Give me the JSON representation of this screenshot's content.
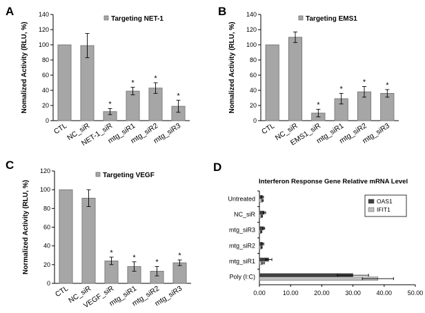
{
  "chart_data": [
    {
      "panel": "A",
      "type": "bar",
      "legend": "Targeting NET-1",
      "ylabel": "Nomalized Activity (RLU, %)",
      "ylim": [
        0,
        140
      ],
      "yticks": [
        0,
        20,
        40,
        60,
        80,
        100,
        120,
        140
      ],
      "categories": [
        "CTL",
        "NC_siR",
        "NET-1_siR",
        "mtg_siR1",
        "mtg_siR2",
        "mtg_siR3"
      ],
      "values": [
        100,
        99,
        12,
        39,
        43,
        19
      ],
      "errors": [
        0,
        16,
        4,
        5,
        7,
        8
      ],
      "significant": [
        false,
        false,
        true,
        true,
        true,
        true
      ],
      "star_symbol": "*"
    },
    {
      "panel": "B",
      "type": "bar",
      "legend": "Targeting EMS1",
      "ylabel": "Nomalized Activity (RLU, %)",
      "ylim": [
        0,
        140
      ],
      "yticks": [
        0,
        20,
        40,
        60,
        80,
        100,
        120,
        140
      ],
      "categories": [
        "CTL",
        "NC_siR",
        "EMS1_siR",
        "mtg_siR1",
        "mtg_siR2",
        "mtg_siR3"
      ],
      "values": [
        100,
        110,
        10,
        29,
        38,
        36
      ],
      "errors": [
        0,
        7,
        5,
        7,
        7,
        5
      ],
      "significant": [
        false,
        false,
        true,
        true,
        true,
        true
      ],
      "star_symbol": "*"
    },
    {
      "panel": "C",
      "type": "bar",
      "legend": "Targeting VEGF",
      "ylabel": "Normalized Activity (RLU, %)",
      "ylim": [
        0,
        120
      ],
      "yticks": [
        0,
        20,
        40,
        60,
        80,
        100,
        120
      ],
      "categories": [
        "CTL",
        "NC_siR",
        "VEGF_siR",
        "mtg_siR1",
        "mtg_siR2",
        "mtg_siR3"
      ],
      "values": [
        100,
        91,
        24,
        18,
        13,
        22
      ],
      "errors": [
        0,
        9,
        4,
        5,
        5,
        3
      ],
      "significant": [
        false,
        false,
        true,
        true,
        true,
        true
      ],
      "star_symbol": "*"
    },
    {
      "panel": "D",
      "type": "bar",
      "orientation": "horizontal",
      "title": "Interferon Response Gene Relative mRNA Level",
      "xlim": [
        0,
        50
      ],
      "xticks": [
        "0.00",
        "10.00",
        "20.00",
        "30.00",
        "40.00",
        "50.00"
      ],
      "categories": [
        "Untreated",
        "NC_siR",
        "mtg_siR3",
        "mtg_siR2",
        "mtg_siR1",
        "Poly (I:C)"
      ],
      "series": [
        {
          "name": "OAS1",
          "color": "#404040",
          "values": [
            1.0,
            1.6,
            1.4,
            1.1,
            3.0,
            30.0
          ],
          "errors": [
            0.3,
            0.4,
            0.3,
            0.3,
            1.0,
            5.0
          ]
        },
        {
          "name": "IFIT1",
          "color": "#bfbfbf",
          "values": [
            1.0,
            0.8,
            0.6,
            0.7,
            1.2,
            38.0
          ],
          "errors": [
            0.2,
            0.2,
            0.2,
            0.2,
            0.4,
            5.0
          ]
        }
      ]
    }
  ]
}
